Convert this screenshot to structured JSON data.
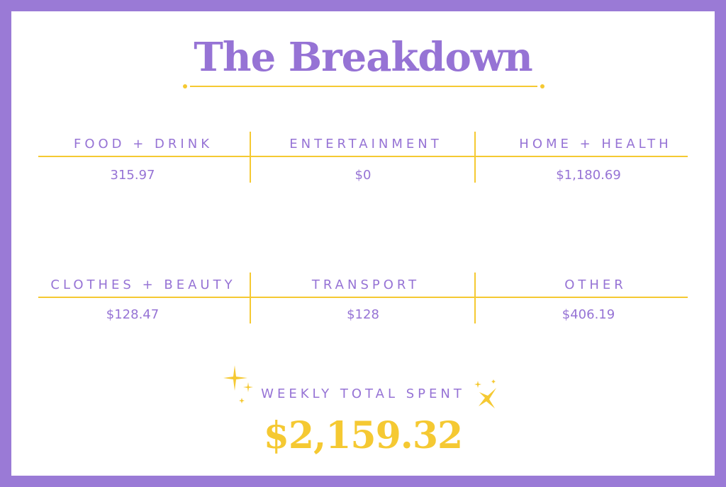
{
  "title": "The Breakdown",
  "colors": {
    "accent_purple": "#9673d5",
    "accent_yellow": "#f5c932",
    "border": "#9a7ad6"
  },
  "categories": [
    {
      "label": "FOOD + DRINK",
      "value": "315.97"
    },
    {
      "label": "ENTERTAINMENT",
      "value": "$0"
    },
    {
      "label": "HOME + HEALTH",
      "value": "$1,180.69"
    },
    {
      "label": "CLOTHES + BEAUTY",
      "value": "$128.47"
    },
    {
      "label": "TRANSPORT",
      "value": "$128"
    },
    {
      "label": "OTHER",
      "value": "$406.19"
    }
  ],
  "total": {
    "label": "WEEKLY TOTAL SPENT",
    "value": "$2,159.32",
    "icon": "sparkle-icon"
  }
}
